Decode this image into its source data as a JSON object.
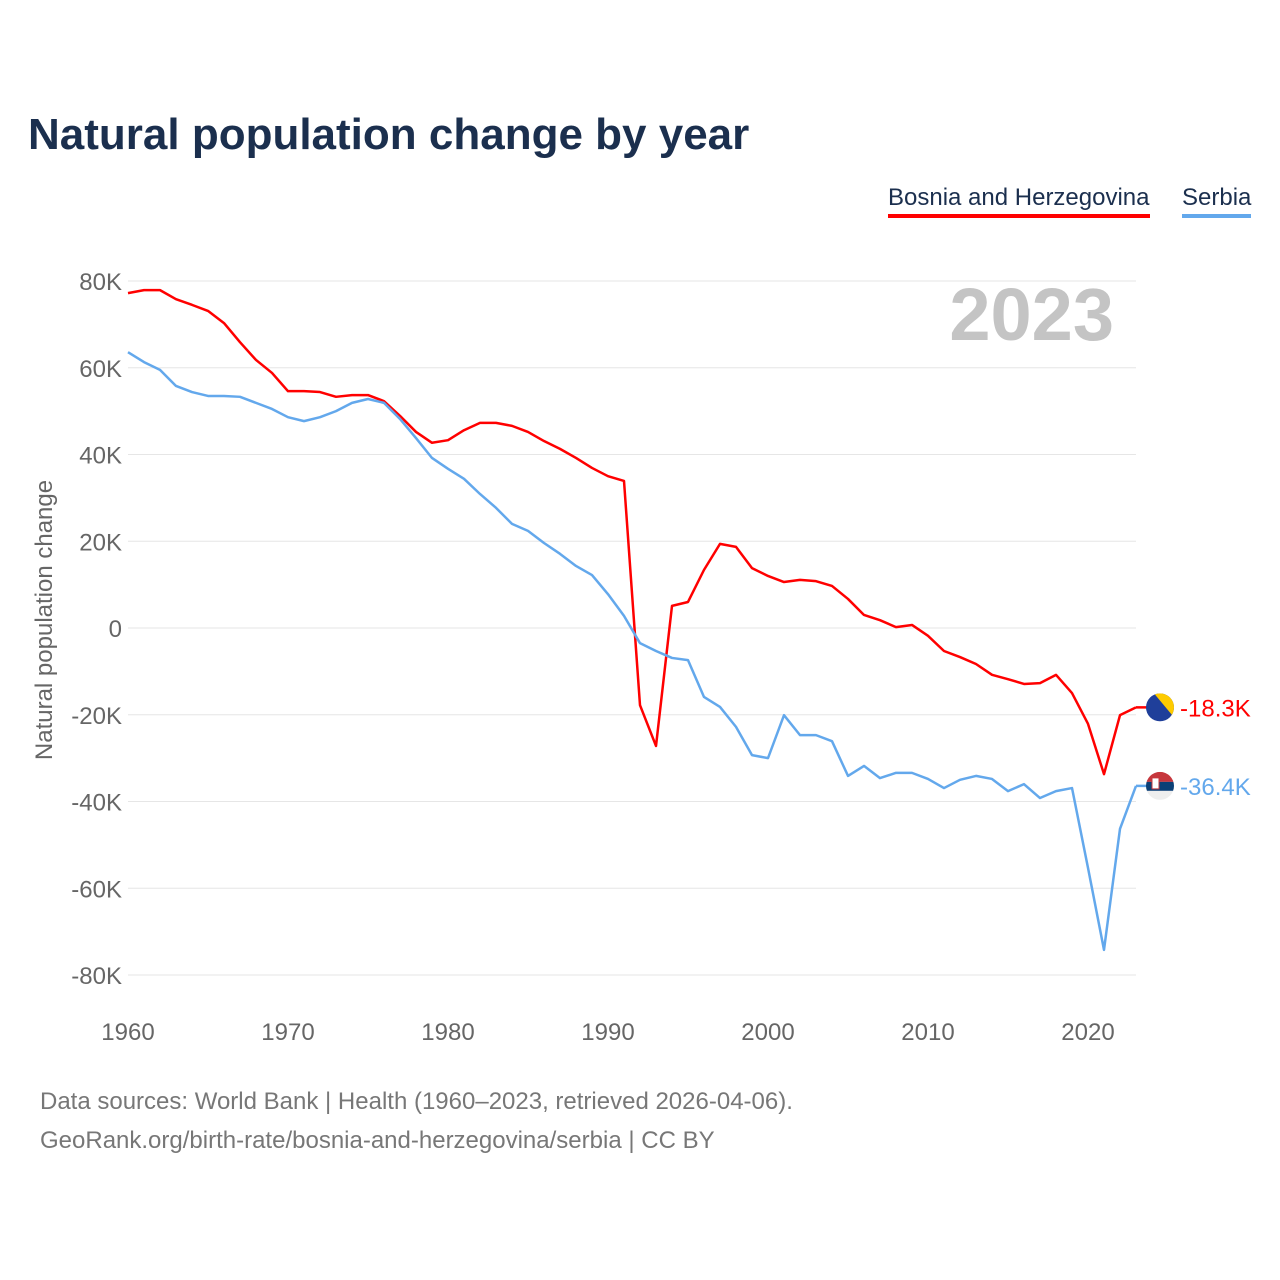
{
  "chart_data": {
    "type": "line",
    "title": "Natural population change by year",
    "xlabel": "",
    "ylabel": "Natural population change",
    "xlim": [
      1960,
      2023
    ],
    "ylim": [
      -80000,
      80000
    ],
    "x_ticks": [
      1960,
      1970,
      1980,
      1990,
      2000,
      2010,
      2020
    ],
    "y_ticks": [
      80000,
      60000,
      40000,
      20000,
      0,
      -20000,
      -40000,
      -60000,
      -80000
    ],
    "y_tick_labels": [
      "80K",
      "60K",
      "40K",
      "20K",
      "0",
      "-20K",
      "-40K",
      "-60K",
      "-80K"
    ],
    "grid": true,
    "legend_position": "top-right",
    "year_label": "2023",
    "x": [
      1960,
      1961,
      1962,
      1963,
      1964,
      1965,
      1966,
      1967,
      1968,
      1969,
      1970,
      1971,
      1972,
      1973,
      1974,
      1975,
      1976,
      1977,
      1978,
      1979,
      1980,
      1981,
      1982,
      1983,
      1984,
      1985,
      1986,
      1987,
      1988,
      1989,
      1990,
      1991,
      1992,
      1993,
      1994,
      1995,
      1996,
      1997,
      1998,
      1999,
      2000,
      2001,
      2002,
      2003,
      2004,
      2005,
      2006,
      2007,
      2008,
      2009,
      2010,
      2011,
      2012,
      2013,
      2014,
      2015,
      2016,
      2017,
      2018,
      2019,
      2020,
      2021,
      2022,
      2023
    ],
    "series": [
      {
        "name": "Bosnia and Herzegovina",
        "color": "#ff0000",
        "end_label": "-18.3K",
        "flag": "bosnia-flag",
        "values": [
          77.2,
          77.9,
          77.9,
          75.8,
          74.5,
          73.1,
          70.3,
          65.9,
          61.8,
          58.8,
          54.6,
          54.6,
          54.4,
          53.3,
          53.7,
          53.7,
          52.3,
          48.9,
          45.2,
          42.7,
          43.3,
          45.6,
          47.3,
          47.3,
          46.6,
          45.2,
          43.1,
          41.3,
          39.2,
          36.9,
          35.0,
          33.9,
          -17.8,
          -27.2,
          5.1,
          6.0,
          13.4,
          19.4,
          18.7,
          13.8,
          12.0,
          10.6,
          11.1,
          10.8,
          9.7,
          6.7,
          3.0,
          1.8,
          0.2,
          0.7,
          -1.8,
          -5.3,
          -6.7,
          -8.3,
          -10.8,
          -11.8,
          -12.9,
          -12.7,
          -10.8,
          -15.0,
          -22.1,
          -33.7,
          -20.1,
          -18.3
        ]
      },
      {
        "name": "Serbia",
        "color": "#63a8ec",
        "end_label": "-36.4K",
        "flag": "serbia-flag",
        "values": [
          63.6,
          61.3,
          59.5,
          55.8,
          54.4,
          53.5,
          53.5,
          53.3,
          51.9,
          50.5,
          48.6,
          47.7,
          48.6,
          50.0,
          51.9,
          52.8,
          51.9,
          48.2,
          43.8,
          39.2,
          36.7,
          34.4,
          30.9,
          27.7,
          24.0,
          22.4,
          19.6,
          17.1,
          14.3,
          12.2,
          7.8,
          2.8,
          -3.5,
          -5.3,
          -6.9,
          -7.4,
          -15.9,
          -18.2,
          -22.8,
          -29.3,
          -30.0,
          -20.1,
          -24.7,
          -24.7,
          -26.1,
          -34.1,
          -31.8,
          -34.6,
          -33.4,
          -33.4,
          -34.8,
          -36.9,
          -35.0,
          -34.1,
          -34.8,
          -37.6,
          -36.0,
          -39.2,
          -37.6,
          -36.9,
          -55.3,
          -74.2,
          -46.3,
          -36.4
        ]
      }
    ],
    "values_unit": "thousands"
  },
  "footer": {
    "line1": "Data sources: World Bank | Health (1960–2023, retrieved 2026-04-06).",
    "line2": "GeoRank.org/birth-rate/bosnia-and-herzegovina/serbia | CC BY"
  }
}
